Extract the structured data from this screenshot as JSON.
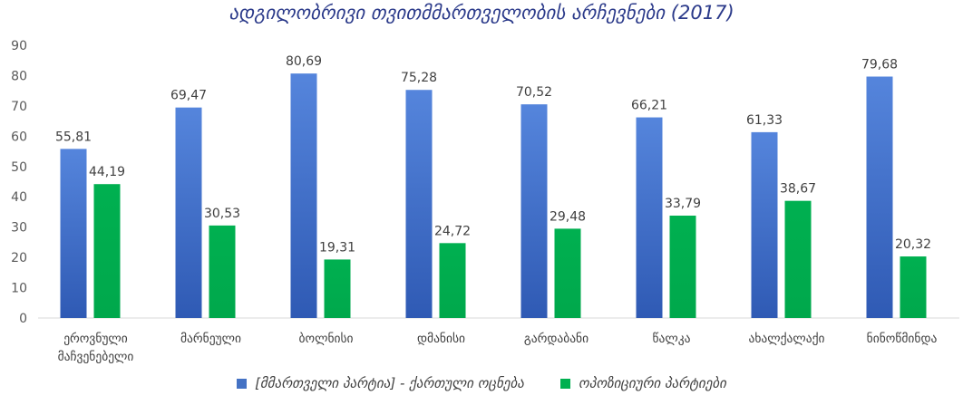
{
  "chart_data": {
    "type": "bar",
    "title": "ადგილობრივი თვითმმართველობის არჩევნები (2017)",
    "categories": [
      [
        "ეროვნული",
        "მაჩვენებელი"
      ],
      [
        "მარნეული"
      ],
      [
        "ბოლნისი"
      ],
      [
        "დმანისი"
      ],
      [
        "გარდაბანი"
      ],
      [
        "წალკა"
      ],
      [
        "ახალქალაქი"
      ],
      [
        "ნინოწმინდა"
      ]
    ],
    "series": [
      {
        "name": "[მმართველი პარტია] - ქართული ოცნება",
        "color": "#4472C4",
        "values": [
          55.81,
          69.47,
          80.69,
          75.28,
          70.52,
          66.21,
          61.33,
          79.68
        ],
        "labels": [
          "55,81",
          "69,47",
          "80,69",
          "75,28",
          "70,52",
          "66,21",
          "61,33",
          "79,68"
        ]
      },
      {
        "name": "ოპოზიციური პარტიები",
        "color": "#00B050",
        "values": [
          44.19,
          30.53,
          19.31,
          24.72,
          29.48,
          33.79,
          38.67,
          20.32
        ],
        "labels": [
          "44,19",
          "30,53",
          "19,31",
          "24,72",
          "29,48",
          "33,79",
          "38,67",
          "20,32"
        ]
      }
    ],
    "ylim": [
      0,
      90
    ],
    "yticks": [
      0,
      10,
      20,
      30,
      40,
      50,
      60,
      70,
      80,
      90
    ],
    "grid": false,
    "legend": "bottom"
  }
}
